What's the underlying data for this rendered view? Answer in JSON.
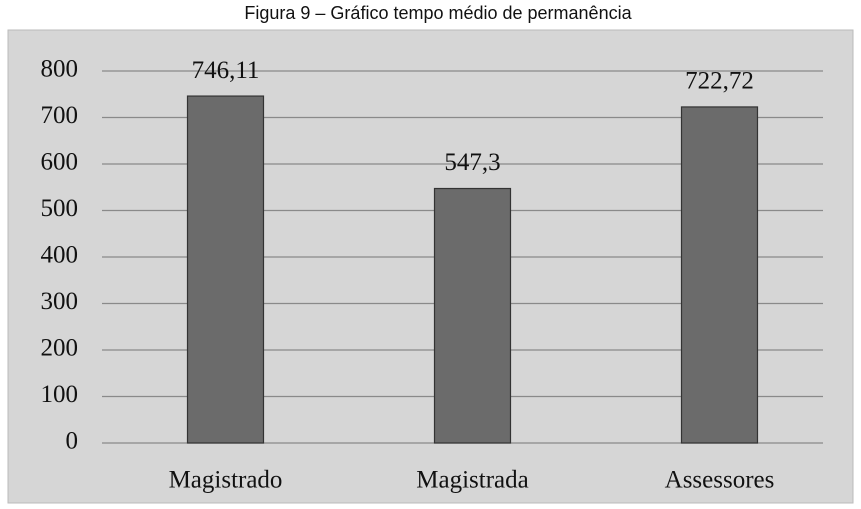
{
  "chart_data": {
    "type": "bar",
    "title": "Figura 9 – Gráfico tempo médio de permanência",
    "categories": [
      "Magistrado",
      "Magistrada",
      "Assessores"
    ],
    "values": [
      746.11,
      547.3,
      722.72
    ],
    "value_labels": [
      "746,11",
      "547,3",
      "722,72"
    ],
    "color": "#6b6b6b",
    "ylim": [
      0,
      800
    ],
    "yticks": [
      0,
      100,
      200,
      300,
      400,
      500,
      600,
      700,
      800
    ],
    "grid": true
  }
}
